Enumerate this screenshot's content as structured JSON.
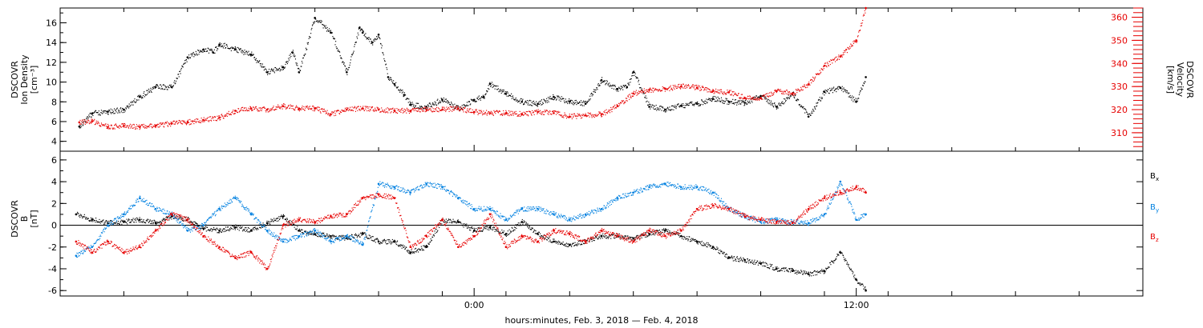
{
  "chart_data": [
    {
      "type": "line",
      "panel": "density-velocity",
      "ylabel_left": [
        "DSCOVR",
        "Ion Density",
        "[cm⁻³]"
      ],
      "ylabel_right": [
        "DSCOVR",
        "Velocity",
        "[km/s]"
      ],
      "ylim_left": [
        3,
        17.5
      ],
      "ylim_right": [
        302,
        364
      ],
      "yticks_left": [
        4,
        6,
        8,
        10,
        12,
        14,
        16
      ],
      "yticks_right": [
        310,
        320,
        330,
        340,
        350,
        360
      ],
      "grid": false,
      "x_hours": [
        -13,
        21
      ],
      "series": [
        {
          "axis": "left",
          "color": "#000000",
          "x": [
            -12.4,
            -12.0,
            -11.5,
            -11.0,
            -10.5,
            -10.0,
            -9.5,
            -9.0,
            -8.5,
            -8.2,
            -8.0,
            -7.5,
            -7.0,
            -6.5,
            -6.0,
            -5.7,
            -5.5,
            -5.0,
            -4.5,
            -4.0,
            -3.6,
            -3.5,
            -3.2,
            -3.0,
            -2.7,
            -2.5,
            -2.2,
            -2.0,
            -1.5,
            -1.0,
            -0.5,
            0.0,
            0.3,
            0.5,
            1.0,
            1.5,
            2.0,
            2.5,
            3.0,
            3.5,
            4.0,
            4.5,
            4.8,
            5.0,
            5.5,
            6.0,
            6.5,
            7.0,
            7.5,
            8.0,
            8.5,
            9.0,
            9.5,
            10.0,
            10.5,
            11.0,
            11.5,
            12.0,
            12.3
          ],
          "y": [
            5.5,
            6.8,
            7.0,
            7.2,
            8.5,
            9.5,
            9.5,
            12.5,
            13.3,
            13.0,
            13.8,
            13.3,
            12.8,
            11.0,
            11.5,
            13.0,
            11.0,
            16.5,
            15.0,
            11.0,
            15.5,
            15.0,
            14.0,
            14.8,
            10.5,
            9.8,
            8.7,
            7.7,
            7.5,
            8.2,
            7.3,
            8.2,
            8.5,
            9.8,
            8.8,
            8.0,
            7.8,
            8.5,
            8.0,
            7.8,
            10.2,
            9.3,
            9.5,
            11.0,
            7.5,
            7.2,
            7.6,
            7.8,
            8.3,
            8.0,
            7.9,
            8.6,
            7.5,
            8.8,
            6.5,
            9.0,
            9.4,
            8.0,
            10.5
          ]
        },
        {
          "axis": "right",
          "color": "#e60000",
          "x": [
            -12.4,
            -12.0,
            -11.5,
            -11.0,
            -10.5,
            -10.0,
            -9.5,
            -9.0,
            -8.5,
            -8.0,
            -7.5,
            -7.0,
            -6.5,
            -6.0,
            -5.5,
            -5.0,
            -4.5,
            -4.0,
            -3.5,
            -3.0,
            -2.5,
            -2.0,
            -1.5,
            -1.0,
            -0.5,
            0.0,
            0.5,
            1.0,
            1.5,
            2.0,
            2.5,
            3.0,
            3.5,
            4.0,
            4.5,
            5.0,
            5.5,
            6.0,
            6.5,
            7.0,
            7.5,
            8.0,
            8.5,
            9.0,
            9.5,
            10.0,
            10.5,
            11.0,
            11.5,
            12.0,
            12.3
          ],
          "y": [
            314.5,
            315.0,
            312.5,
            313.0,
            312.5,
            313.0,
            314.0,
            314.5,
            315.5,
            316.5,
            319.5,
            320.5,
            320.0,
            321.5,
            320.5,
            320.5,
            318.0,
            320.0,
            320.5,
            320.0,
            319.5,
            319.5,
            320.0,
            320.0,
            320.5,
            319.0,
            318.5,
            318.5,
            318.0,
            319.0,
            318.5,
            317.0,
            317.5,
            318.0,
            321.5,
            327.0,
            328.5,
            329.0,
            330.0,
            329.5,
            328.0,
            327.5,
            325.0,
            325.0,
            328.0,
            327.0,
            331.0,
            339.0,
            343.0,
            350.0,
            364.0
          ]
        }
      ]
    },
    {
      "type": "line",
      "panel": "magnetic-field",
      "ylabel_left": [
        "DSCOVR",
        "B",
        "[nT]"
      ],
      "ylim": [
        -6.5,
        6.8
      ],
      "yticks": [
        -6,
        -4,
        -2,
        0,
        2,
        4,
        6
      ],
      "zero_line": true,
      "grid": false,
      "x_hours": [
        -13,
        21
      ],
      "legend_position": "right",
      "series": [
        {
          "name": "B",
          "subscript": "x",
          "color": "#000000",
          "x": [
            -12.5,
            -12.0,
            -11.5,
            -11.0,
            -10.5,
            -10.0,
            -9.5,
            -9.0,
            -8.5,
            -8.0,
            -7.5,
            -7.0,
            -6.5,
            -6.0,
            -5.5,
            -5.0,
            -4.5,
            -4.0,
            -3.5,
            -3.0,
            -2.5,
            -2.0,
            -1.5,
            -1.0,
            -0.5,
            0.0,
            0.5,
            1.0,
            1.5,
            2.0,
            2.5,
            3.0,
            3.5,
            4.0,
            4.5,
            5.0,
            5.5,
            6.0,
            6.5,
            7.0,
            7.5,
            8.0,
            8.5,
            9.0,
            9.5,
            10.0,
            10.5,
            11.0,
            11.5,
            12.0,
            12.3
          ],
          "y": [
            1.0,
            0.5,
            0.2,
            0.3,
            0.5,
            0.2,
            0.8,
            0.5,
            -0.3,
            -0.5,
            -0.2,
            -0.5,
            0.2,
            0.8,
            -0.5,
            -0.8,
            -1.0,
            -1.2,
            -0.8,
            -1.5,
            -1.5,
            -2.5,
            -2.0,
            0.5,
            0.3,
            -0.5,
            -0.2,
            -0.8,
            0.3,
            -0.8,
            -1.5,
            -1.8,
            -1.5,
            -1.0,
            -1.0,
            -1.2,
            -0.8,
            -0.5,
            -1.0,
            -1.5,
            -2.0,
            -3.0,
            -3.2,
            -3.5,
            -4.0,
            -4.2,
            -4.5,
            -4.2,
            -2.5,
            -5.0,
            -6.0
          ]
        },
        {
          "name": "B",
          "subscript": "y",
          "color": "#0080e0",
          "x": [
            -12.5,
            -12.0,
            -11.5,
            -11.0,
            -10.5,
            -10.0,
            -9.5,
            -9.0,
            -8.5,
            -8.0,
            -7.5,
            -7.0,
            -6.5,
            -6.0,
            -5.5,
            -5.0,
            -4.5,
            -4.0,
            -3.5,
            -3.0,
            -2.5,
            -2.0,
            -1.5,
            -1.0,
            -0.5,
            0.0,
            0.5,
            1.0,
            1.5,
            2.0,
            2.5,
            3.0,
            3.5,
            4.0,
            4.5,
            5.0,
            5.5,
            6.0,
            6.5,
            7.0,
            7.5,
            8.0,
            8.5,
            9.0,
            9.5,
            10.0,
            10.5,
            11.0,
            11.5,
            12.0,
            12.3
          ],
          "y": [
            -2.8,
            -2.0,
            0.0,
            1.0,
            2.5,
            1.5,
            1.0,
            -0.5,
            0.0,
            1.5,
            2.5,
            1.0,
            -0.5,
            -1.5,
            -1.0,
            -0.5,
            -1.5,
            -1.0,
            -1.8,
            3.8,
            3.5,
            3.0,
            3.8,
            3.5,
            2.5,
            1.5,
            1.5,
            0.5,
            1.5,
            1.5,
            1.0,
            0.5,
            1.0,
            1.5,
            2.5,
            3.0,
            3.5,
            3.8,
            3.5,
            3.5,
            3.0,
            1.5,
            0.8,
            0.3,
            0.5,
            0.3,
            0.2,
            1.0,
            4.0,
            0.5,
            1.0
          ]
        },
        {
          "name": "B",
          "subscript": "z",
          "color": "#e60000",
          "x": [
            -12.5,
            -12.0,
            -11.5,
            -11.0,
            -10.5,
            -10.0,
            -9.5,
            -9.0,
            -8.5,
            -8.0,
            -7.5,
            -7.0,
            -6.5,
            -6.0,
            -5.5,
            -5.0,
            -4.5,
            -4.0,
            -3.5,
            -3.0,
            -2.5,
            -2.0,
            -1.5,
            -1.0,
            -0.5,
            0.0,
            0.5,
            1.0,
            1.5,
            2.0,
            2.5,
            3.0,
            3.5,
            4.0,
            4.5,
            5.0,
            5.5,
            6.0,
            6.5,
            7.0,
            7.5,
            8.0,
            8.5,
            9.0,
            9.5,
            10.0,
            10.5,
            11.0,
            11.5,
            12.0,
            12.3
          ],
          "y": [
            -1.5,
            -2.5,
            -1.5,
            -2.5,
            -2.0,
            -0.5,
            1.0,
            0.5,
            -1.0,
            -2.0,
            -3.0,
            -2.5,
            -4.0,
            0.0,
            0.5,
            0.3,
            0.8,
            1.0,
            2.5,
            2.8,
            2.5,
            -2.0,
            -1.0,
            0.5,
            -2.0,
            -1.0,
            1.0,
            -2.0,
            -1.0,
            -1.5,
            -0.5,
            -0.8,
            -1.5,
            -0.5,
            -1.0,
            -1.5,
            -0.5,
            -1.0,
            -0.5,
            1.5,
            1.8,
            1.5,
            0.8,
            0.5,
            0.3,
            0.2,
            1.5,
            2.5,
            3.0,
            3.5,
            3.0
          ]
        }
      ]
    }
  ],
  "x_axis": {
    "label": "hours:minutes, Feb.  3, 2018 — Feb.  4, 2018",
    "ticks": [
      {
        "hour": 0,
        "label": "0:00"
      },
      {
        "hour": 12,
        "label": "12:00"
      }
    ],
    "minor_hours": [
      -11,
      -9,
      -7,
      -5,
      -3,
      -1,
      1,
      3,
      5,
      7,
      9,
      11,
      13,
      15,
      17,
      19
    ]
  }
}
